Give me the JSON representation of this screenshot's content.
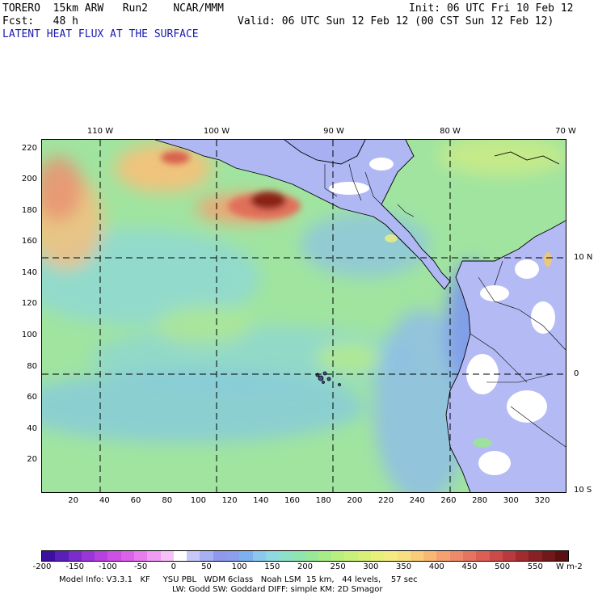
{
  "header": {
    "model": "TORERO  15km ARW   Run2    NCAR/MMM",
    "init": "Init: 06 UTC Fri 10 Feb 12",
    "fcst": "Fcst:   48 h",
    "valid": "Valid: 06 UTC Sun 12 Feb 12 (00 CST Sun 12 Feb 12)",
    "field_title": "LATENT HEAT FLUX AT THE SURFACE"
  },
  "map": {
    "lon_labels": [
      "110 W",
      "100 W",
      "90 W",
      "80 W",
      "70 W"
    ],
    "lat_labels": [
      "10 N",
      "0",
      "10 S"
    ],
    "y_ticks": [
      "220",
      "200",
      "180",
      "160",
      "140",
      "120",
      "100",
      "80",
      "60",
      "40",
      "20"
    ],
    "x_ticks": [
      "20",
      "40",
      "60",
      "80",
      "100",
      "120",
      "140",
      "160",
      "180",
      "200",
      "220",
      "240",
      "260",
      "280",
      "300",
      "320"
    ],
    "grid_x_range": [
      0,
      335
    ],
    "grid_y_range": [
      0,
      226
    ]
  },
  "colorbar": {
    "labels": [
      "-200",
      "-150",
      "-100",
      "-50",
      "0",
      "50",
      "100",
      "150",
      "200",
      "250",
      "300",
      "350",
      "400",
      "450",
      "500",
      "550"
    ],
    "units": "W m-2",
    "colors": [
      "#3b0fa0",
      "#5a1fb8",
      "#7a2ccc",
      "#9a35d8",
      "#b640e0",
      "#cc4fe6",
      "#dc62ea",
      "#e87bee",
      "#f09cf2",
      "#f7c0f6",
      "#ffffff",
      "#c8c8f8",
      "#a8b0f4",
      "#9098ee",
      "#8aa0ee",
      "#7fb0ee",
      "#8bc8ee",
      "#8fd8e0",
      "#8fe0c8",
      "#90e4b0",
      "#98e898",
      "#a8ec88",
      "#b8f080",
      "#c8f07a",
      "#d8f078",
      "#e8f07a",
      "#f4ec80",
      "#f8e080",
      "#f8cc78",
      "#f8b874",
      "#f4a070",
      "#ee8a6a",
      "#e67460",
      "#dc5e54",
      "#cc4a48",
      "#b83a3c",
      "#a02c30",
      "#882024",
      "#70181a",
      "#5a1010"
    ]
  },
  "footer": {
    "line1": "Model Info: V3.3.1   KF     YSU PBL   WDM 6class   Noah LSM  15 km,   44 levels,    57 sec",
    "line2": "LW: Godd SW: Goddard DIFF: simple KM: 2D Smagor"
  }
}
